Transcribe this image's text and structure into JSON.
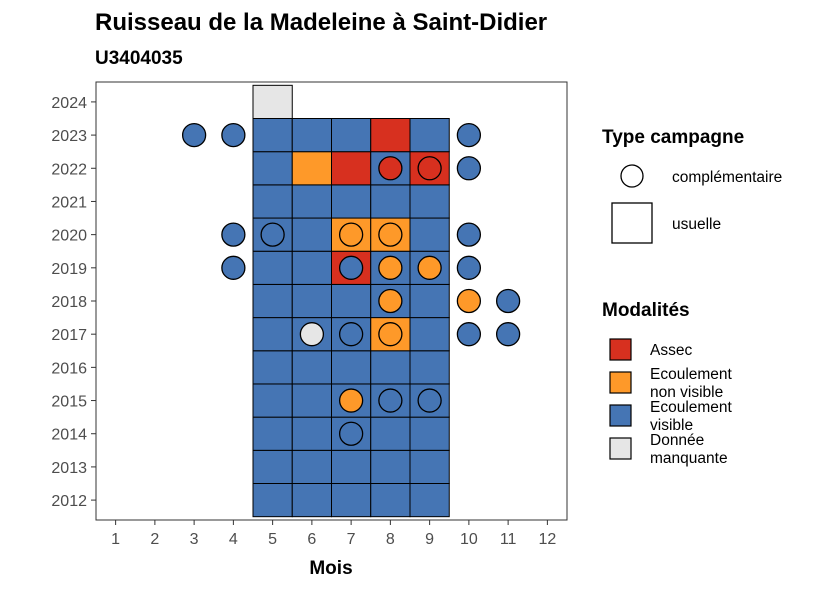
{
  "chart_data": {
    "type": "heatmap",
    "title": "Ruisseau de la Madeleine à Saint-Didier",
    "subtitle": "U3404035",
    "xlabel": "Mois",
    "ylabel": "",
    "x_ticks": [
      "1",
      "2",
      "3",
      "4",
      "5",
      "6",
      "7",
      "8",
      "9",
      "10",
      "11",
      "12"
    ],
    "y_ticks": [
      "2012",
      "2013",
      "2014",
      "2015",
      "2016",
      "2017",
      "2018",
      "2019",
      "2020",
      "2021",
      "2022",
      "2023",
      "2024"
    ],
    "xlim": [
      0.5,
      12.5
    ],
    "ylim": [
      2011.4,
      2024.6
    ],
    "grid": false,
    "colors": {
      "Assec": "#d7301f",
      "Ecoulement non visible": "#fe9929",
      "Ecoulement visible": "#4575b4",
      "Donnée manquante": "#e6e6e6"
    },
    "usuelle": [
      {
        "year": 2012,
        "months": {
          "5": "Ecoulement visible",
          "6": "Ecoulement visible",
          "7": "Ecoulement visible",
          "8": "Ecoulement visible",
          "9": "Ecoulement visible"
        }
      },
      {
        "year": 2013,
        "months": {
          "5": "Ecoulement visible",
          "6": "Ecoulement visible",
          "7": "Ecoulement visible",
          "8": "Ecoulement visible",
          "9": "Ecoulement visible"
        }
      },
      {
        "year": 2014,
        "months": {
          "5": "Ecoulement visible",
          "6": "Ecoulement visible",
          "7": "Ecoulement visible",
          "8": "Ecoulement visible",
          "9": "Ecoulement visible"
        }
      },
      {
        "year": 2015,
        "months": {
          "5": "Ecoulement visible",
          "6": "Ecoulement visible",
          "7": "Ecoulement visible",
          "8": "Ecoulement visible",
          "9": "Ecoulement visible"
        }
      },
      {
        "year": 2016,
        "months": {
          "5": "Ecoulement visible",
          "6": "Ecoulement visible",
          "7": "Ecoulement visible",
          "8": "Ecoulement visible",
          "9": "Ecoulement visible"
        }
      },
      {
        "year": 2017,
        "months": {
          "5": "Ecoulement visible",
          "6": "Ecoulement visible",
          "7": "Ecoulement visible",
          "8": "Ecoulement non visible",
          "9": "Ecoulement visible"
        }
      },
      {
        "year": 2018,
        "months": {
          "5": "Ecoulement visible",
          "6": "Ecoulement visible",
          "7": "Ecoulement visible",
          "8": "Ecoulement visible",
          "9": "Ecoulement visible"
        }
      },
      {
        "year": 2019,
        "months": {
          "5": "Ecoulement visible",
          "6": "Ecoulement visible",
          "7": "Assec",
          "8": "Ecoulement visible",
          "9": "Ecoulement visible"
        }
      },
      {
        "year": 2020,
        "months": {
          "5": "Ecoulement visible",
          "6": "Ecoulement visible",
          "7": "Ecoulement non visible",
          "8": "Ecoulement non visible",
          "9": "Ecoulement visible"
        }
      },
      {
        "year": 2021,
        "months": {
          "5": "Ecoulement visible",
          "6": "Ecoulement visible",
          "7": "Ecoulement visible",
          "8": "Ecoulement visible",
          "9": "Ecoulement visible"
        }
      },
      {
        "year": 2022,
        "months": {
          "5": "Ecoulement visible",
          "6": "Ecoulement non visible",
          "7": "Assec",
          "8": "Ecoulement visible",
          "9": "Assec"
        }
      },
      {
        "year": 2023,
        "months": {
          "5": "Ecoulement visible",
          "6": "Ecoulement visible",
          "7": "Ecoulement visible",
          "8": "Assec",
          "9": "Ecoulement visible"
        }
      },
      {
        "year": 2024,
        "months": {
          "5": "Donnée manquante"
        }
      }
    ],
    "complementaire": [
      {
        "year": 2014,
        "month": 7,
        "modalite": "Ecoulement visible"
      },
      {
        "year": 2015,
        "month": 7,
        "modalite": "Ecoulement non visible"
      },
      {
        "year": 2015,
        "month": 8,
        "modalite": "Ecoulement visible"
      },
      {
        "year": 2015,
        "month": 9,
        "modalite": "Ecoulement visible"
      },
      {
        "year": 2017,
        "month": 6,
        "modalite": "Donnée manquante"
      },
      {
        "year": 2017,
        "month": 7,
        "modalite": "Ecoulement visible"
      },
      {
        "year": 2017,
        "month": 8,
        "modalite": "Ecoulement non visible"
      },
      {
        "year": 2017,
        "month": 10,
        "modalite": "Ecoulement visible"
      },
      {
        "year": 2017,
        "month": 11,
        "modalite": "Ecoulement visible"
      },
      {
        "year": 2018,
        "month": 8,
        "modalite": "Ecoulement non visible"
      },
      {
        "year": 2018,
        "month": 10,
        "modalite": "Ecoulement non visible"
      },
      {
        "year": 2018,
        "month": 11,
        "modalite": "Ecoulement visible"
      },
      {
        "year": 2019,
        "month": 4,
        "modalite": "Ecoulement visible"
      },
      {
        "year": 2019,
        "month": 7,
        "modalite": "Ecoulement visible"
      },
      {
        "year": 2019,
        "month": 8,
        "modalite": "Ecoulement non visible"
      },
      {
        "year": 2019,
        "month": 9,
        "modalite": "Ecoulement non visible"
      },
      {
        "year": 2019,
        "month": 10,
        "modalite": "Ecoulement visible"
      },
      {
        "year": 2020,
        "month": 4,
        "modalite": "Ecoulement visible"
      },
      {
        "year": 2020,
        "month": 5,
        "modalite": "Ecoulement visible"
      },
      {
        "year": 2020,
        "month": 7,
        "modalite": "Ecoulement non visible"
      },
      {
        "year": 2020,
        "month": 8,
        "modalite": "Ecoulement non visible"
      },
      {
        "year": 2020,
        "month": 10,
        "modalite": "Ecoulement visible"
      },
      {
        "year": 2022,
        "month": 8,
        "modalite": "Assec"
      },
      {
        "year": 2022,
        "month": 9,
        "modalite": "Assec"
      },
      {
        "year": 2022,
        "month": 10,
        "modalite": "Ecoulement visible"
      },
      {
        "year": 2023,
        "month": 3,
        "modalite": "Ecoulement visible"
      },
      {
        "year": 2023,
        "month": 4,
        "modalite": "Ecoulement visible"
      },
      {
        "year": 2023,
        "month": 10,
        "modalite": "Ecoulement visible"
      }
    ],
    "legend": {
      "placement": "right",
      "type_title": "Type campagne",
      "type_items": [
        {
          "label": "complémentaire",
          "shape": "circle"
        },
        {
          "label": "usuelle",
          "shape": "square"
        }
      ],
      "modalites_title": "Modalités",
      "modalites_items": [
        {
          "key": "Assec",
          "lines": [
            "Assec"
          ]
        },
        {
          "key": "Ecoulement non visible",
          "lines": [
            "Ecoulement",
            "non visible"
          ]
        },
        {
          "key": "Ecoulement visible",
          "lines": [
            "Ecoulement",
            "visible"
          ]
        },
        {
          "key": "Donnée manquante",
          "lines": [
            "Donnée",
            "manquante"
          ]
        }
      ]
    }
  }
}
